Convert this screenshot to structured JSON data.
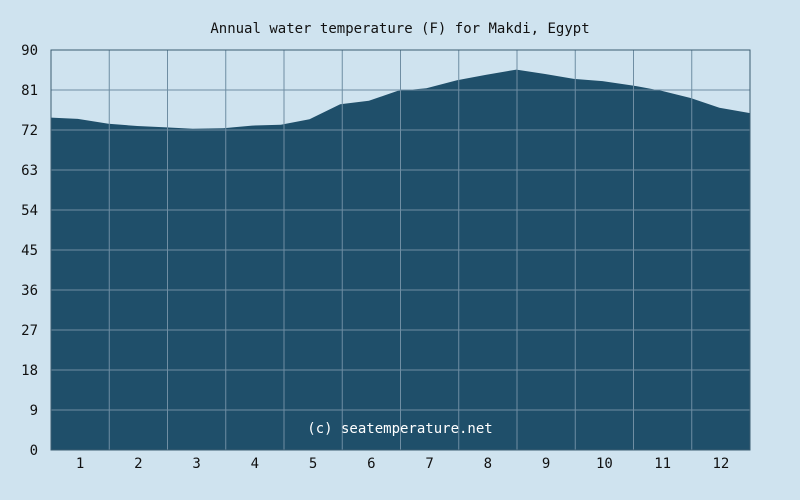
{
  "chart_data": {
    "type": "area",
    "title": "Annual water temperature (F) for Makdi, Egypt",
    "xlabel": "",
    "ylabel": "",
    "x_tick_labels": [
      "1",
      "2",
      "3",
      "4",
      "5",
      "6",
      "7",
      "8",
      "9",
      "10",
      "11",
      "12"
    ],
    "y_tick_labels": [
      "0",
      "9",
      "18",
      "27",
      "36",
      "45",
      "54",
      "63",
      "72",
      "81",
      "90"
    ],
    "xlim": [
      1,
      366
    ],
    "ylim": [
      0,
      90
    ],
    "grid": true,
    "watermark": "(c) seatemperature.net",
    "colors": {
      "background": "#cfe3ef",
      "area_fill": "#1f4f6a",
      "grid": "#6f8ea3"
    },
    "series": [
      {
        "x": [
          1,
          15,
          31,
          46,
          60,
          75,
          91,
          106,
          121,
          136,
          152,
          167,
          182,
          197,
          213,
          228,
          244,
          259,
          274,
          289,
          305,
          320,
          335,
          350,
          366
        ],
        "values": [
          74.8,
          74.5,
          73.4,
          72.9,
          72.6,
          72.3,
          72.4,
          73.0,
          73.2,
          74.4,
          77.8,
          78.6,
          80.8,
          81.4,
          83.2,
          84.4,
          85.6,
          84.6,
          83.5,
          83.0,
          82.0,
          80.8,
          79.2,
          77.0,
          75.8
        ]
      }
    ]
  }
}
